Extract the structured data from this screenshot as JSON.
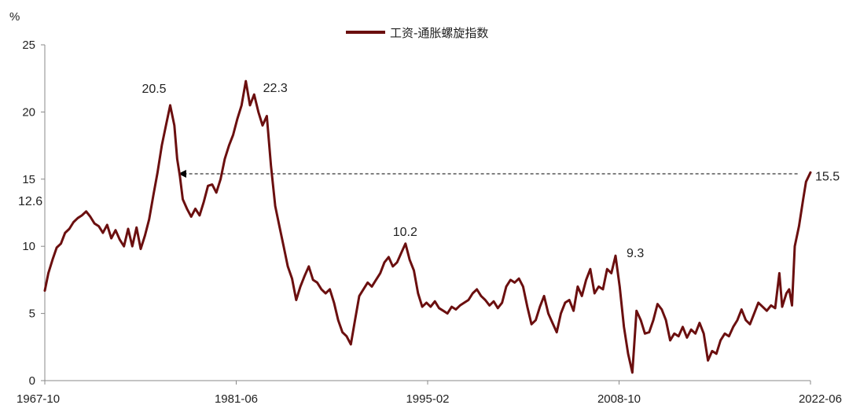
{
  "chart_data": {
    "type": "line",
    "title": "",
    "ylabel": "%",
    "xlabel": "",
    "ylim": [
      0,
      25
    ],
    "y_ticks": [
      "0",
      "5",
      "10",
      "15",
      "20",
      "25"
    ],
    "x_ticks": [
      "1967-10",
      "1981-06",
      "1995-02",
      "2008-10",
      "2022-06"
    ],
    "x_range": [
      1967.75,
      2022.42
    ],
    "legend": {
      "position": "top-center"
    },
    "series": [
      {
        "name": "工资-通胀螺旋指数",
        "color": "#6b0f0f",
        "points": [
          [
            1967.75,
            6.7
          ],
          [
            1968.0,
            8.0
          ],
          [
            1968.3,
            9.0
          ],
          [
            1968.6,
            9.9
          ],
          [
            1968.9,
            10.2
          ],
          [
            1969.2,
            11.0
          ],
          [
            1969.5,
            11.3
          ],
          [
            1969.8,
            11.8
          ],
          [
            1970.1,
            12.1
          ],
          [
            1970.4,
            12.3
          ],
          [
            1970.7,
            12.6
          ],
          [
            1971.0,
            12.2
          ],
          [
            1971.3,
            11.7
          ],
          [
            1971.6,
            11.5
          ],
          [
            1971.9,
            11.0
          ],
          [
            1972.2,
            11.6
          ],
          [
            1972.5,
            10.6
          ],
          [
            1972.8,
            11.2
          ],
          [
            1973.1,
            10.5
          ],
          [
            1973.4,
            10.0
          ],
          [
            1973.7,
            11.3
          ],
          [
            1974.0,
            10.0
          ],
          [
            1974.3,
            11.4
          ],
          [
            1974.6,
            9.8
          ],
          [
            1974.9,
            10.8
          ],
          [
            1975.2,
            12.0
          ],
          [
            1975.5,
            13.8
          ],
          [
            1975.8,
            15.5
          ],
          [
            1976.1,
            17.5
          ],
          [
            1976.4,
            19.0
          ],
          [
            1976.7,
            20.5
          ],
          [
            1977.0,
            19.0
          ],
          [
            1977.2,
            16.5
          ],
          [
            1977.4,
            15.2
          ],
          [
            1977.6,
            13.5
          ],
          [
            1977.9,
            12.8
          ],
          [
            1978.2,
            12.2
          ],
          [
            1978.5,
            12.8
          ],
          [
            1978.8,
            12.3
          ],
          [
            1979.1,
            13.3
          ],
          [
            1979.4,
            14.5
          ],
          [
            1979.7,
            14.6
          ],
          [
            1980.0,
            14.0
          ],
          [
            1980.3,
            15.0
          ],
          [
            1980.6,
            16.5
          ],
          [
            1980.9,
            17.5
          ],
          [
            1981.2,
            18.3
          ],
          [
            1981.5,
            19.5
          ],
          [
            1981.8,
            20.5
          ],
          [
            1982.1,
            22.3
          ],
          [
            1982.4,
            20.5
          ],
          [
            1982.7,
            21.3
          ],
          [
            1983.0,
            20.0
          ],
          [
            1983.3,
            19.0
          ],
          [
            1983.6,
            19.7
          ],
          [
            1983.9,
            16.0
          ],
          [
            1984.2,
            13.0
          ],
          [
            1984.5,
            11.5
          ],
          [
            1984.8,
            10.0
          ],
          [
            1985.1,
            8.5
          ],
          [
            1985.4,
            7.6
          ],
          [
            1985.7,
            6.0
          ],
          [
            1986.0,
            7.0
          ],
          [
            1986.3,
            7.8
          ],
          [
            1986.6,
            8.5
          ],
          [
            1986.9,
            7.5
          ],
          [
            1987.2,
            7.3
          ],
          [
            1987.5,
            6.8
          ],
          [
            1987.8,
            6.5
          ],
          [
            1988.1,
            6.8
          ],
          [
            1988.4,
            5.8
          ],
          [
            1988.7,
            4.5
          ],
          [
            1989.0,
            3.6
          ],
          [
            1989.3,
            3.3
          ],
          [
            1989.6,
            2.7
          ],
          [
            1989.9,
            4.5
          ],
          [
            1990.2,
            6.3
          ],
          [
            1990.5,
            6.8
          ],
          [
            1990.8,
            7.3
          ],
          [
            1991.1,
            7.0
          ],
          [
            1991.4,
            7.5
          ],
          [
            1991.7,
            8.0
          ],
          [
            1992.0,
            8.8
          ],
          [
            1992.3,
            9.2
          ],
          [
            1992.6,
            8.5
          ],
          [
            1992.9,
            8.8
          ],
          [
            1993.2,
            9.5
          ],
          [
            1993.5,
            10.2
          ],
          [
            1993.8,
            9.0
          ],
          [
            1994.1,
            8.2
          ],
          [
            1994.4,
            6.5
          ],
          [
            1994.7,
            5.5
          ],
          [
            1995.0,
            5.8
          ],
          [
            1995.3,
            5.5
          ],
          [
            1995.6,
            5.9
          ],
          [
            1995.9,
            5.4
          ],
          [
            1996.2,
            5.2
          ],
          [
            1996.5,
            5.0
          ],
          [
            1996.8,
            5.5
          ],
          [
            1997.1,
            5.3
          ],
          [
            1997.4,
            5.6
          ],
          [
            1997.7,
            5.8
          ],
          [
            1998.0,
            6.0
          ],
          [
            1998.3,
            6.5
          ],
          [
            1998.6,
            6.8
          ],
          [
            1998.9,
            6.3
          ],
          [
            1999.2,
            6.0
          ],
          [
            1999.5,
            5.6
          ],
          [
            1999.8,
            5.9
          ],
          [
            2000.1,
            5.4
          ],
          [
            2000.4,
            5.8
          ],
          [
            2000.7,
            7.0
          ],
          [
            2001.0,
            7.5
          ],
          [
            2001.3,
            7.3
          ],
          [
            2001.6,
            7.6
          ],
          [
            2001.9,
            7.0
          ],
          [
            2002.2,
            5.5
          ],
          [
            2002.5,
            4.2
          ],
          [
            2002.8,
            4.5
          ],
          [
            2003.1,
            5.5
          ],
          [
            2003.4,
            6.3
          ],
          [
            2003.7,
            5.0
          ],
          [
            2004.0,
            4.3
          ],
          [
            2004.3,
            3.6
          ],
          [
            2004.6,
            5.0
          ],
          [
            2004.9,
            5.8
          ],
          [
            2005.2,
            6.0
          ],
          [
            2005.5,
            5.2
          ],
          [
            2005.8,
            7.0
          ],
          [
            2006.1,
            6.3
          ],
          [
            2006.4,
            7.5
          ],
          [
            2006.7,
            8.3
          ],
          [
            2007.0,
            6.5
          ],
          [
            2007.3,
            7.0
          ],
          [
            2007.6,
            6.8
          ],
          [
            2007.9,
            8.3
          ],
          [
            2008.2,
            8.0
          ],
          [
            2008.5,
            9.3
          ],
          [
            2008.8,
            7.0
          ],
          [
            2009.1,
            4.0
          ],
          [
            2009.4,
            2.0
          ],
          [
            2009.7,
            0.6
          ],
          [
            2010.0,
            5.2
          ],
          [
            2010.3,
            4.5
          ],
          [
            2010.6,
            3.5
          ],
          [
            2010.9,
            3.6
          ],
          [
            2011.2,
            4.5
          ],
          [
            2011.5,
            5.7
          ],
          [
            2011.8,
            5.3
          ],
          [
            2012.1,
            4.5
          ],
          [
            2012.4,
            3.0
          ],
          [
            2012.7,
            3.5
          ],
          [
            2013.0,
            3.3
          ],
          [
            2013.3,
            4.0
          ],
          [
            2013.6,
            3.2
          ],
          [
            2013.9,
            3.8
          ],
          [
            2014.2,
            3.5
          ],
          [
            2014.5,
            4.3
          ],
          [
            2014.8,
            3.5
          ],
          [
            2015.1,
            1.5
          ],
          [
            2015.4,
            2.2
          ],
          [
            2015.7,
            2.0
          ],
          [
            2016.0,
            3.0
          ],
          [
            2016.3,
            3.5
          ],
          [
            2016.6,
            3.3
          ],
          [
            2016.9,
            4.0
          ],
          [
            2017.2,
            4.5
          ],
          [
            2017.5,
            5.3
          ],
          [
            2017.8,
            4.5
          ],
          [
            2018.1,
            4.2
          ],
          [
            2018.4,
            5.0
          ],
          [
            2018.7,
            5.8
          ],
          [
            2019.0,
            5.5
          ],
          [
            2019.3,
            5.2
          ],
          [
            2019.6,
            5.6
          ],
          [
            2019.9,
            5.4
          ],
          [
            2020.2,
            8.0
          ],
          [
            2020.4,
            5.5
          ],
          [
            2020.7,
            6.5
          ],
          [
            2020.9,
            6.8
          ],
          [
            2021.1,
            5.6
          ],
          [
            2021.3,
            10.0
          ],
          [
            2021.6,
            11.5
          ],
          [
            2021.9,
            13.5
          ],
          [
            2022.1,
            14.8
          ],
          [
            2022.42,
            15.5
          ]
        ]
      }
    ],
    "annotations": [
      {
        "text": "12.6",
        "x": 1968.2,
        "y": 12.6
      },
      {
        "text": "20.5",
        "x": 1976.7,
        "y": 20.5
      },
      {
        "text": "22.3",
        "x": 1982.1,
        "y": 22.3
      },
      {
        "text": "10.2",
        "x": 1993.5,
        "y": 10.2
      },
      {
        "text": "9.3",
        "x": 2008.5,
        "y": 9.3
      },
      {
        "text": "15.5",
        "x": 2022.42,
        "y": 15.5
      }
    ],
    "reference_arrow": {
      "from_x": 2021.5,
      "to_x": 1977.4,
      "y": 15.4,
      "style": "dashed",
      "color": "#000000"
    }
  }
}
